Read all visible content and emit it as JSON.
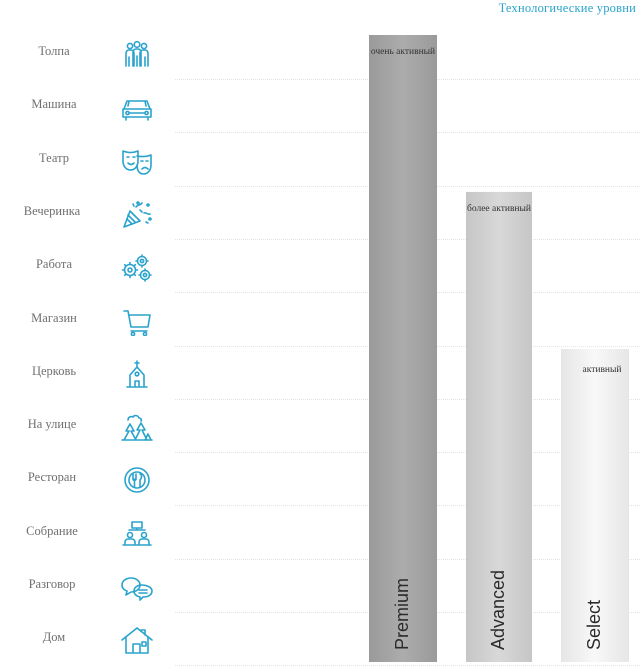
{
  "chart_data": {
    "type": "bar",
    "title": "Технологические уровни",
    "rows": [
      {
        "label": "Толпа",
        "icon": "crowd-icon"
      },
      {
        "label": "Машина",
        "icon": "car-icon"
      },
      {
        "label": "Театр",
        "icon": "theater-masks-icon"
      },
      {
        "label": "Вечеринка",
        "icon": "party-popper-icon"
      },
      {
        "label": "Работа",
        "icon": "gears-icon"
      },
      {
        "label": "Магазин",
        "icon": "shopping-cart-icon"
      },
      {
        "label": "Церковь",
        "icon": "church-icon"
      },
      {
        "label": "На улице",
        "icon": "outdoor-trees-icon"
      },
      {
        "label": "Ресторан",
        "icon": "restaurant-icon"
      },
      {
        "label": "Собрание",
        "icon": "meeting-icon"
      },
      {
        "label": "Разговор",
        "icon": "conversation-icon"
      },
      {
        "label": "Дом",
        "icon": "home-icon"
      }
    ],
    "series": [
      {
        "name": "Premium",
        "level_label": "очень активный",
        "value": 12,
        "color": "#9a9a9a"
      },
      {
        "name": "Advanced",
        "level_label": "более активный",
        "value": 9,
        "color": "#c6c6c6"
      },
      {
        "name": "Select",
        "level_label": "активный",
        "value": 6,
        "color": "#e6e6e6"
      }
    ],
    "ylim": [
      0,
      12
    ],
    "legend": "none",
    "accent_color": "#2aa3cc"
  }
}
